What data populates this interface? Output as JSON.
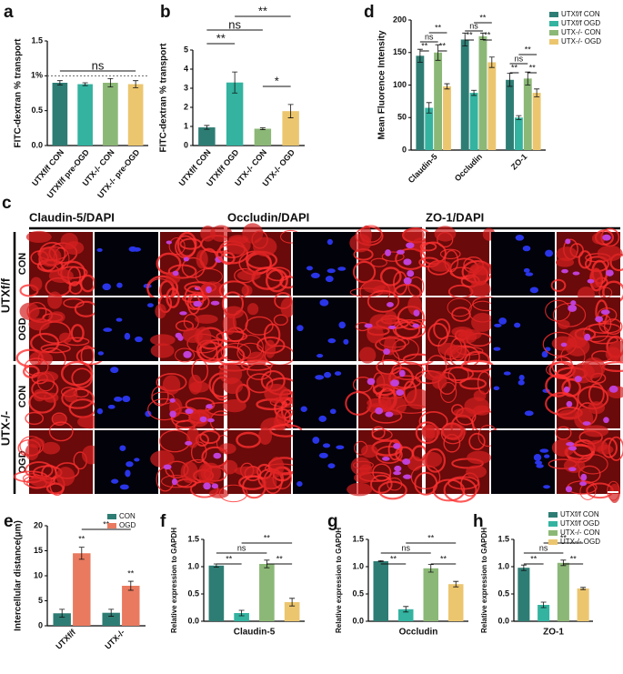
{
  "chart_data": [
    {
      "type": "bar",
      "panel": "a",
      "ylabel": "FITC-dextran % transport",
      "categories": [
        "UTXf/f CON",
        "UTXf/f pre-OGD",
        "UTX-/- CON",
        "UTX-/- pre-OGD"
      ],
      "values": [
        0.9,
        0.88,
        0.9,
        0.88
      ],
      "errors": [
        0.03,
        0.02,
        0.06,
        0.05
      ],
      "colors": [
        "#2e7d74",
        "#33b3a0",
        "#8cb877",
        "#ecc66f"
      ],
      "ylim": [
        0,
        1.5
      ],
      "yticks": [
        {
          "value": 0,
          "label": "0.0"
        },
        {
          "value": 0.5,
          "label": "0.5"
        },
        {
          "value": 1,
          "label": "1%"
        },
        {
          "value": 1.5,
          "label": "1.5"
        }
      ],
      "reference_line": 1,
      "annotations": [
        "ns"
      ]
    },
    {
      "type": "bar",
      "panel": "b",
      "ylabel": "FITC-dextran % transport",
      "categories": [
        "UTXf/f CON",
        "UTXf/f OGD",
        "UTX-/- CON",
        "UTX-/- OGD"
      ],
      "values": [
        0.95,
        3.3,
        0.88,
        1.8
      ],
      "errors": [
        0.1,
        0.55,
        0.05,
        0.35
      ],
      "colors": [
        "#2e7d74",
        "#33b3a0",
        "#8cb877",
        "#ecc66f"
      ],
      "ylim": [
        0,
        5
      ],
      "yticks": [
        0,
        1,
        2,
        3,
        4,
        5
      ],
      "annotations": [
        "**",
        "ns",
        "**",
        "*"
      ]
    },
    {
      "type": "grouped_bar",
      "panel": "d",
      "ylabel": "Mean Fluorence Intensity",
      "categories": [
        "Claudin-5",
        "Occludin",
        "ZO-1"
      ],
      "series": [
        {
          "name": "UTXf/f CON",
          "color": "#2e7d74",
          "values": [
            145,
            170,
            108
          ],
          "errors": [
            10,
            10,
            10
          ]
        },
        {
          "name": "UTXf/f OGD",
          "color": "#33b3a0",
          "values": [
            65,
            88,
            50
          ],
          "errors": [
            8,
            4,
            3
          ]
        },
        {
          "name": "UTX-/- CON",
          "color": "#8cb877",
          "values": [
            150,
            175,
            110
          ],
          "errors": [
            12,
            5,
            10
          ]
        },
        {
          "name": "UTX-/- OGD",
          "color": "#ecc66f",
          "values": [
            98,
            135,
            88
          ],
          "errors": [
            4,
            8,
            6
          ]
        }
      ],
      "ylim": [
        0,
        200
      ],
      "yticks": [
        0,
        50,
        100,
        150,
        200
      ],
      "annotations": [
        "**",
        "ns",
        "**",
        "**",
        "**",
        "ns",
        "**",
        "**",
        "**",
        "ns",
        "**",
        "**"
      ]
    },
    {
      "type": "grouped_bar",
      "panel": "e",
      "ylabel": "Intercellular distance(μm)",
      "categories": [
        "UTXf/f",
        "UTX-/-"
      ],
      "series": [
        {
          "name": "CON",
          "color": "#2e7d74",
          "values": [
            2.5,
            2.6
          ],
          "errors": [
            0.8,
            0.7
          ]
        },
        {
          "name": "OGD",
          "color": "#e97a5f",
          "values": [
            14.5,
            8
          ],
          "errors": [
            1.2,
            0.9
          ]
        }
      ],
      "ylim": [
        0,
        20
      ],
      "yticks": [
        0,
        5,
        10,
        15,
        20
      ],
      "annotations": [
        "**",
        "**",
        "**"
      ]
    },
    {
      "type": "bar",
      "panel": "f",
      "ylabel": "Relative expression to GAPDH",
      "xlabel": "Claudin-5",
      "values": [
        1.02,
        0.15,
        1.05,
        0.35
      ],
      "errors": [
        0.03,
        0.05,
        0.07,
        0.07
      ],
      "colors": [
        "#2e7d74",
        "#33b3a0",
        "#8cb877",
        "#ecc66f"
      ],
      "ylim": [
        0,
        1.5
      ],
      "yticks": [
        {
          "value": 0,
          "label": "0.0"
        },
        {
          "value": 0.5,
          "label": "0.5"
        },
        {
          "value": 1,
          "label": "1.0"
        },
        {
          "value": 1.5,
          "label": "1.5"
        }
      ],
      "annotations": [
        "**",
        "ns",
        "**",
        "**"
      ]
    },
    {
      "type": "bar",
      "panel": "g",
      "ylabel": "Relative expression to GAPDH",
      "xlabel": "Occludin",
      "values": [
        1.1,
        0.22,
        0.97,
        0.68
      ],
      "errors": [
        0.01,
        0.05,
        0.07,
        0.05
      ],
      "colors": [
        "#2e7d74",
        "#33b3a0",
        "#8cb877",
        "#ecc66f"
      ],
      "ylim": [
        0,
        1.5
      ],
      "yticks": [
        {
          "value": 0,
          "label": "0.0"
        },
        {
          "value": 0.5,
          "label": "0.5"
        },
        {
          "value": 1,
          "label": "1.0"
        },
        {
          "value": 1.5,
          "label": "1.5"
        }
      ],
      "annotations": [
        "**",
        "ns",
        "**",
        "**"
      ]
    },
    {
      "type": "bar",
      "panel": "h",
      "ylabel": "Relative expression to GAPDH",
      "xlabel": "ZO-1",
      "values": [
        0.98,
        0.3,
        1.07,
        0.6
      ],
      "errors": [
        0.05,
        0.05,
        0.05,
        0.02
      ],
      "colors": [
        "#2e7d74",
        "#33b3a0",
        "#8cb877",
        "#ecc66f"
      ],
      "legend": [
        "UTXf/f CON",
        "UTXf/f OGD",
        "UTX-/- CON",
        "UTX-/- OGD"
      ],
      "ylim": [
        0,
        1.5
      ],
      "yticks": [
        {
          "value": 0,
          "label": "0.0"
        },
        {
          "value": 0.5,
          "label": "0.5"
        },
        {
          "value": 1,
          "label": "1.0"
        },
        {
          "value": 1.5,
          "label": "1.5"
        }
      ],
      "annotations": [
        "**",
        "ns",
        "**",
        "**"
      ]
    }
  ],
  "microscopy": {
    "panel": "c",
    "stains": [
      {
        "name": "Claudin-5",
        "counterstain": "/DAPI"
      },
      {
        "name": "Occludin",
        "counterstain": "/DAPI"
      },
      {
        "name": "ZO-1",
        "counterstain": "/DAPI"
      }
    ],
    "groups": [
      {
        "name": "UTXf/f",
        "rows": [
          "CON",
          "OGD"
        ]
      },
      {
        "name": "UTX-/-",
        "rows": [
          "CON",
          "OGD"
        ]
      }
    ]
  }
}
